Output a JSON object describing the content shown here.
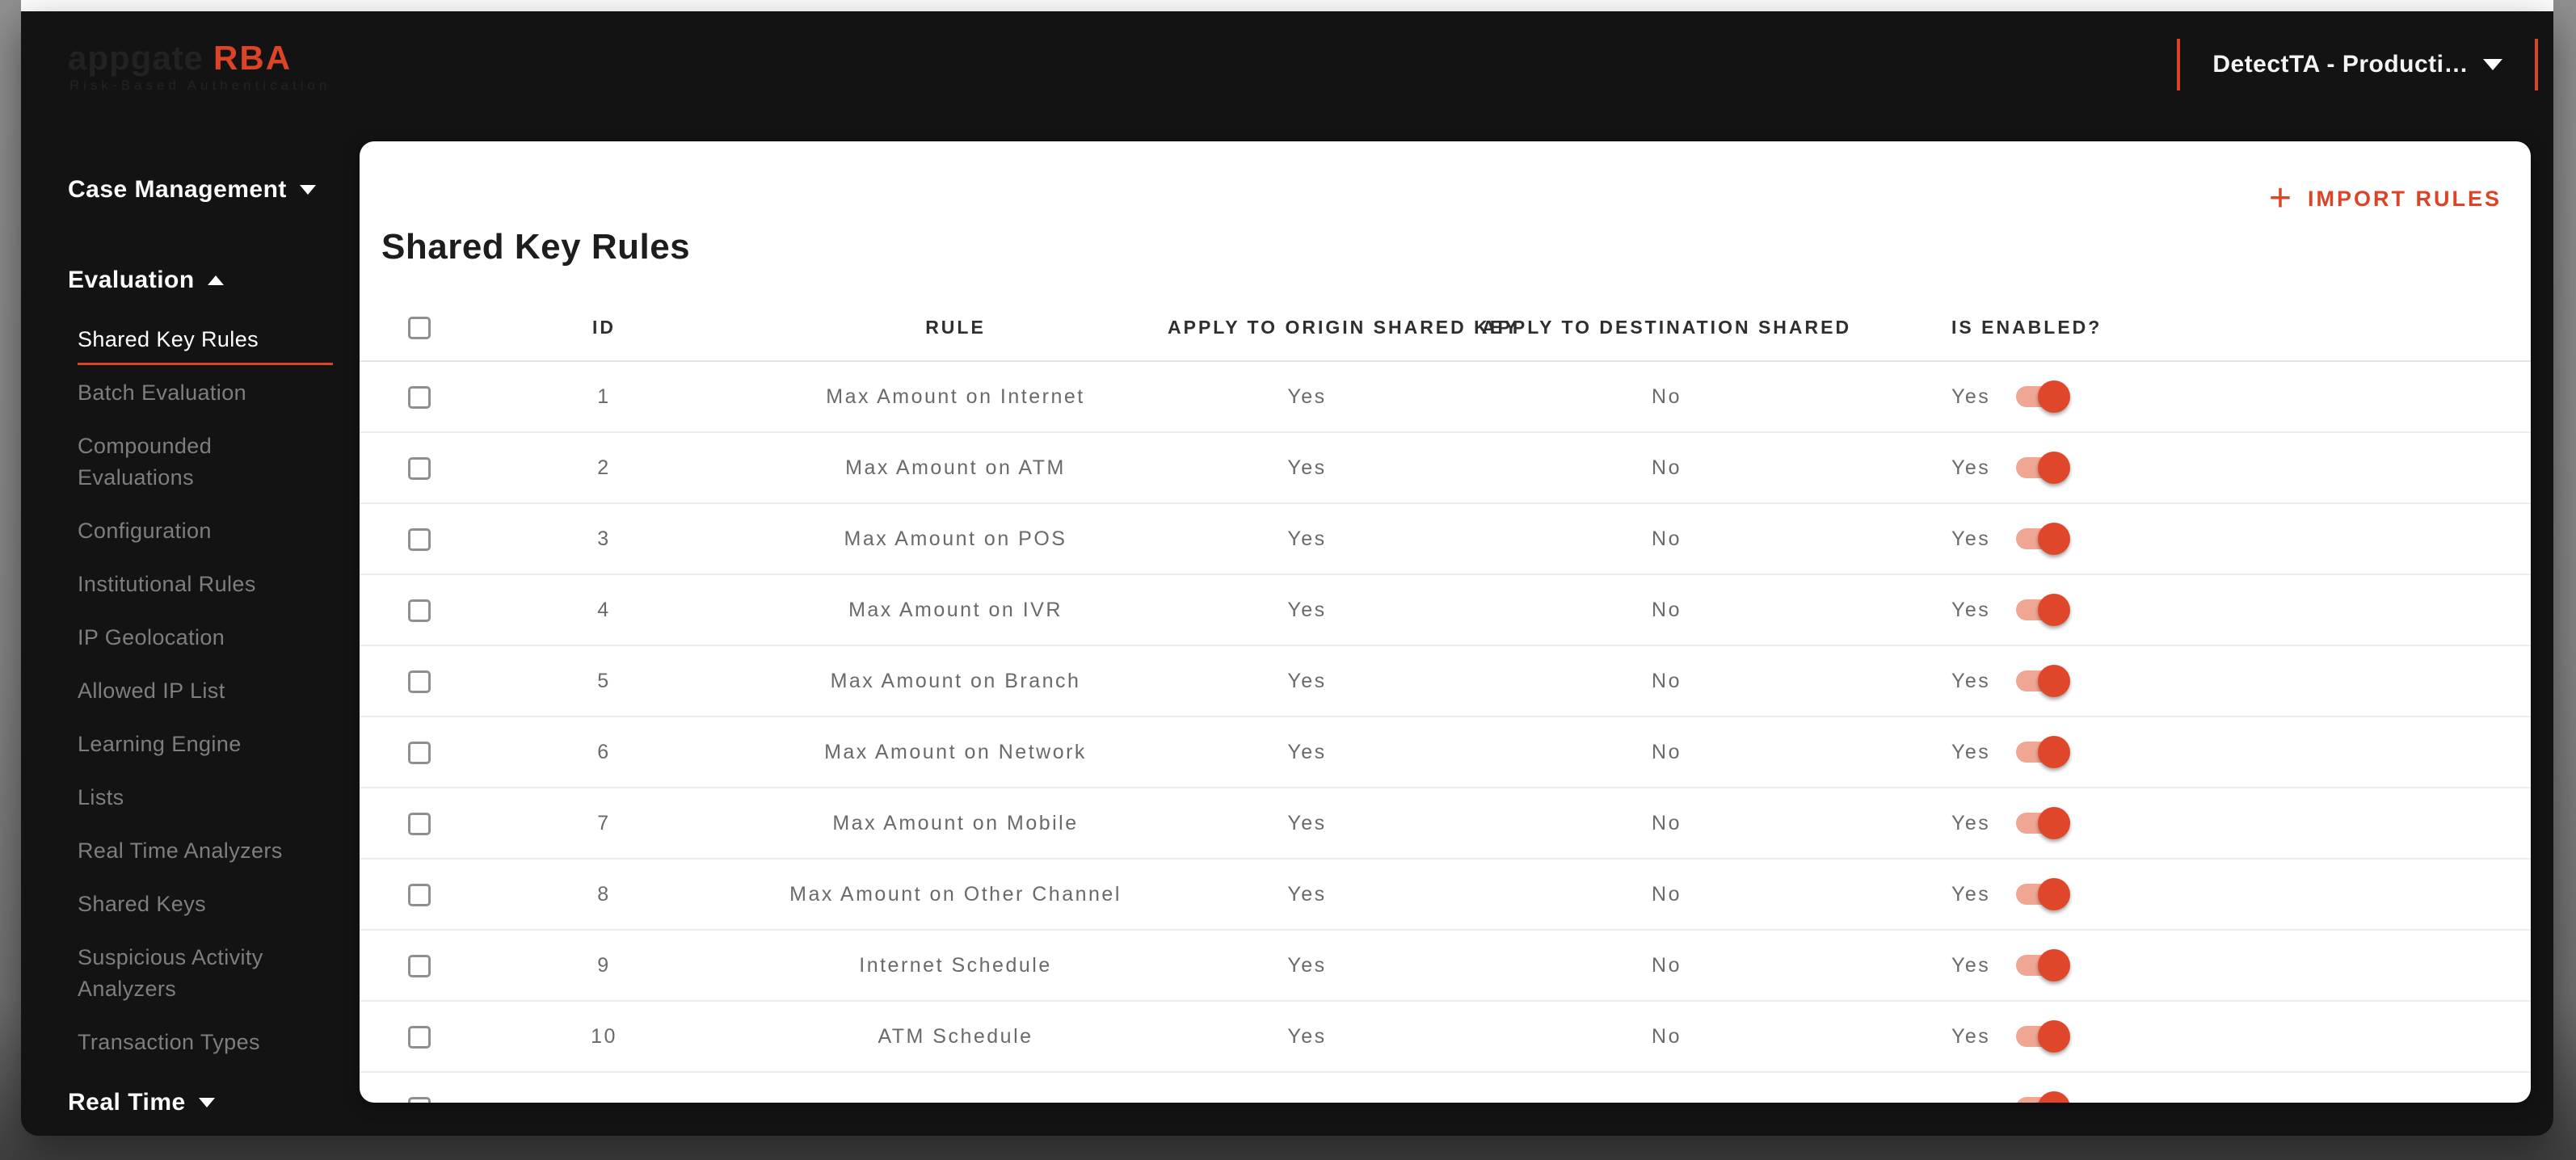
{
  "accent_color": "#DC4327",
  "header": {
    "logo": {
      "primary": "appgate",
      "accent": "RBA",
      "subtitle": "Risk-Based Authentication"
    },
    "environment_dropdown": {
      "value": "DetectTA - Producti…"
    }
  },
  "sidebar": {
    "case_management_label": "Case Management",
    "evaluation_label": "Evaluation",
    "real_time_label": "Real Time",
    "evaluation_items": [
      {
        "label": "Shared Key Rules",
        "active": true
      },
      {
        "label": "Batch Evaluation"
      },
      {
        "label": "Compounded Evaluations"
      },
      {
        "label": "Configuration"
      },
      {
        "label": "Institutional Rules"
      },
      {
        "label": "IP Geolocation"
      },
      {
        "label": "Allowed IP List"
      },
      {
        "label": "Learning Engine"
      },
      {
        "label": "Lists"
      },
      {
        "label": "Real Time Analyzers"
      },
      {
        "label": "Shared Keys"
      },
      {
        "label": "Suspicious Activity Analyzers"
      },
      {
        "label": "Transaction Types"
      }
    ]
  },
  "main": {
    "title": "Shared Key Rules",
    "import_button_label": "IMPORT RULES",
    "table": {
      "columns": [
        "ID",
        "RULE",
        "APPLY TO ORIGIN SHARED KEY",
        "APPLY TO DESTINATION SHARED",
        "IS ENABLED?"
      ],
      "rows": [
        {
          "id": "1",
          "rule": "Max Amount on Internet",
          "origin": "Yes",
          "destination": "No",
          "enabled_label": "Yes",
          "enabled": true
        },
        {
          "id": "2",
          "rule": "Max Amount on ATM",
          "origin": "Yes",
          "destination": "No",
          "enabled_label": "Yes",
          "enabled": true
        },
        {
          "id": "3",
          "rule": "Max Amount on POS",
          "origin": "Yes",
          "destination": "No",
          "enabled_label": "Yes",
          "enabled": true
        },
        {
          "id": "4",
          "rule": "Max Amount on IVR",
          "origin": "Yes",
          "destination": "No",
          "enabled_label": "Yes",
          "enabled": true
        },
        {
          "id": "5",
          "rule": "Max Amount on Branch",
          "origin": "Yes",
          "destination": "No",
          "enabled_label": "Yes",
          "enabled": true
        },
        {
          "id": "6",
          "rule": "Max Amount on Network",
          "origin": "Yes",
          "destination": "No",
          "enabled_label": "Yes",
          "enabled": true
        },
        {
          "id": "7",
          "rule": "Max Amount on Mobile",
          "origin": "Yes",
          "destination": "No",
          "enabled_label": "Yes",
          "enabled": true
        },
        {
          "id": "8",
          "rule": "Max Amount on Other Channel",
          "origin": "Yes",
          "destination": "No",
          "enabled_label": "Yes",
          "enabled": true
        },
        {
          "id": "9",
          "rule": "Internet Schedule",
          "origin": "Yes",
          "destination": "No",
          "enabled_label": "Yes",
          "enabled": true
        },
        {
          "id": "10",
          "rule": "ATM Schedule",
          "origin": "Yes",
          "destination": "No",
          "enabled_label": "Yes",
          "enabled": true
        },
        {
          "id": "",
          "rule": "",
          "origin": "",
          "destination": "",
          "enabled_label": "",
          "enabled": true,
          "partial": true
        }
      ]
    }
  }
}
